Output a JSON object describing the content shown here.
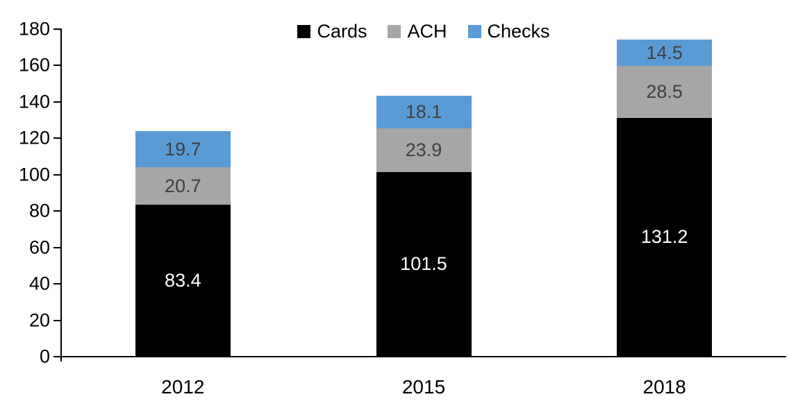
{
  "chart_data": {
    "type": "bar",
    "stacked": true,
    "title": "",
    "categories": [
      "2012",
      "2015",
      "2018"
    ],
    "series": [
      {
        "name": "Cards",
        "color": "#000000",
        "label_color": "#FFFFFF",
        "values": [
          83.4,
          101.5,
          131.2
        ]
      },
      {
        "name": "ACH",
        "color": "#A6A6A6",
        "label_color": "#404040",
        "values": [
          20.7,
          23.9,
          28.5
        ]
      },
      {
        "name": "Checks",
        "color": "#5B9BD5",
        "label_color": "#404040",
        "values": [
          19.7,
          18.1,
          14.5
        ]
      }
    ],
    "ylim": [
      0,
      180
    ],
    "ytick_step": 20,
    "ytick_labels": [
      "0",
      "20",
      "40",
      "60",
      "80",
      "100",
      "120",
      "140",
      "160",
      "180"
    ],
    "grid": false,
    "legend_position": "top",
    "data_labels": "inside-center",
    "axis_color": "#000000",
    "background": "#FFFFFF"
  }
}
